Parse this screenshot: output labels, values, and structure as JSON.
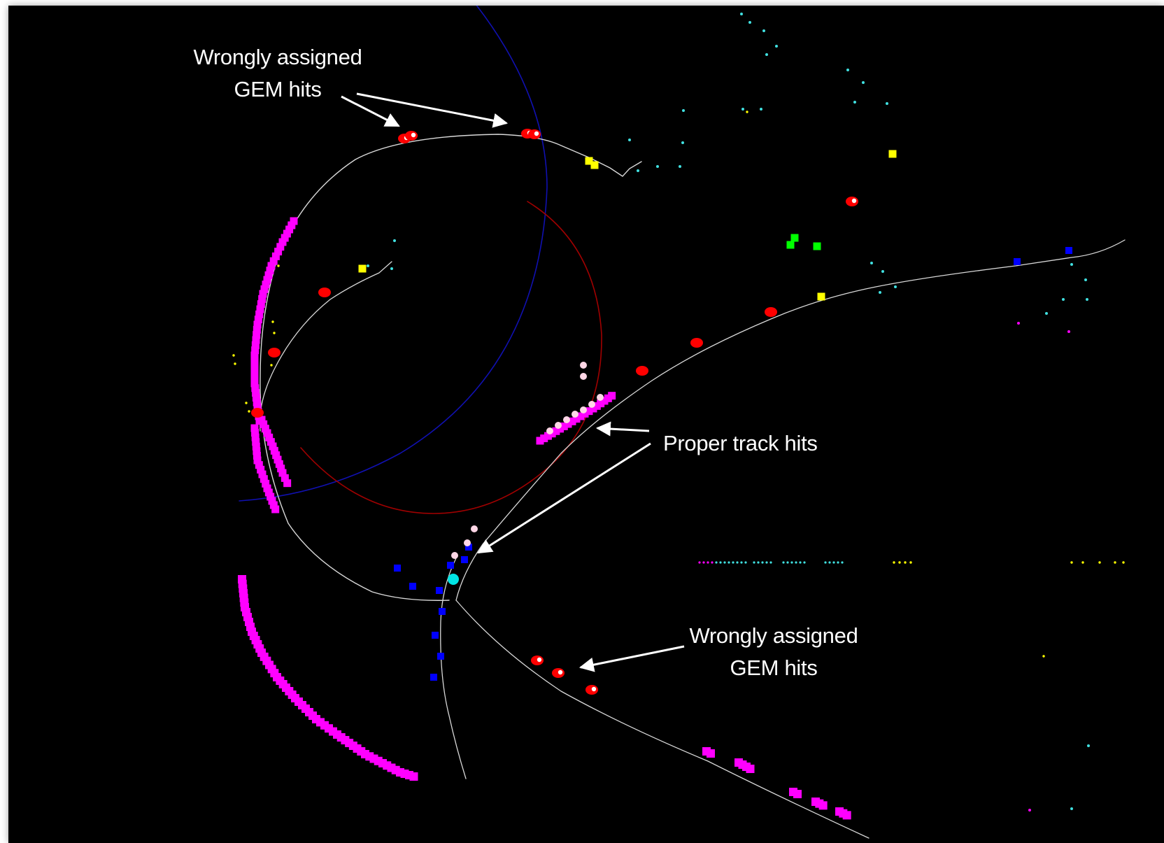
{
  "annotations": {
    "top_left": {
      "line1": "Wrongly assigned",
      "line2": "GEM hits"
    },
    "middle_right": {
      "line1": "Proper track hits"
    },
    "bottom": {
      "line1": "Wrongly assigned",
      "line2": "GEM hits"
    }
  },
  "colors": {
    "background": "#000000",
    "track": "#d9d9d9",
    "gem_hit": "#ff0000",
    "gem_hit_marker": "#ffffff",
    "straw_hit": "#ff00ff",
    "mvd_hit": "#0000ff",
    "yellow_hit": "#ffff00",
    "green_hit": "#00ff00",
    "noise": "#40e0e0",
    "vertex": "#00e5e5",
    "projection_circle_blue": "#1010b0",
    "projection_circle_red": "#a00000",
    "annotation_text": "#ffffff"
  }
}
